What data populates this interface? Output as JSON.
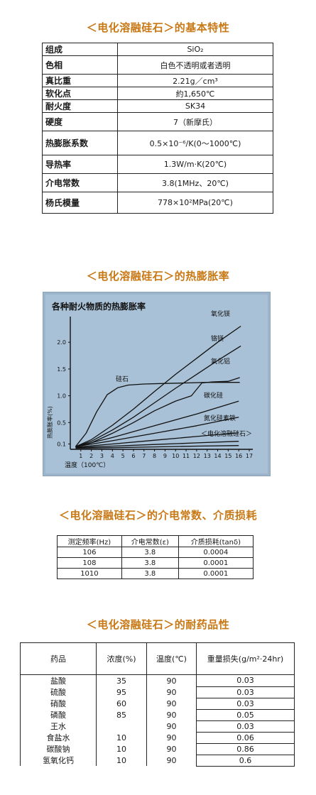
{
  "headings": {
    "basic": "＜电化溶融硅石＞的基本特性",
    "expansion": "＜电化溶融硅石＞的热膨胀率",
    "dielectric": "＜电化溶融硅石＞的介电常数、介质损耗",
    "chemical": "＜电化溶融硅石＞的耐药品性"
  },
  "properties": [
    {
      "label": "组成",
      "value": "SiO₂"
    },
    {
      "label": "色相",
      "value": "白色不透明或者透明"
    },
    {
      "label": "真比重",
      "value": "2.21g／cm³"
    },
    {
      "label": "软化点",
      "value": "約1,650℃"
    },
    {
      "label": "耐火度",
      "value": "SK34"
    },
    {
      "label": "硬度",
      "value": "7（新摩氏）"
    },
    {
      "label": "热膨胀系数",
      "value": "0.5×10⁻⁶/K(0～1000℃)"
    },
    {
      "label": "导热率",
      "value": "1.3W/m·K(20℃)"
    },
    {
      "label": "介电常数",
      "value": "3.8(1MHz、20℃)"
    },
    {
      "label": "杨氏模量",
      "value": "778×10²MPa(20℃)"
    }
  ],
  "chart_data": {
    "type": "line",
    "title": "各种耐火物质的热膨胀率",
    "xlabel": "温度（100℃）",
    "ylabel": "热膨胀率(%)",
    "x_ticks": [
      "1",
      "2",
      "3",
      "4",
      "5",
      "6",
      "7",
      "8",
      "9",
      "10",
      "11",
      "12",
      "13",
      "14",
      "15",
      "16",
      "17"
    ],
    "y_ticks": [
      "0.1",
      "0.5",
      "1.0",
      "1.5",
      "2.0"
    ],
    "xlim": [
      0,
      17
    ],
    "ylim": [
      0,
      2.4
    ],
    "series": [
      {
        "name": "氧化镁",
        "x": [
          0.5,
          2,
          4,
          6,
          8,
          10,
          12,
          14,
          16.2
        ],
        "y": [
          0.05,
          0.18,
          0.45,
          0.75,
          1.08,
          1.4,
          1.7,
          2.0,
          2.3
        ]
      },
      {
        "name": "铬镁",
        "x": [
          0.5,
          2,
          4,
          6,
          8,
          10,
          12,
          14,
          16.2
        ],
        "y": [
          0.05,
          0.15,
          0.36,
          0.6,
          0.87,
          1.14,
          1.4,
          1.66,
          1.93
        ]
      },
      {
        "name": "氧化铝",
        "x": [
          0.5,
          2,
          4,
          6,
          8,
          10,
          11.5,
          12.5,
          13.5,
          15,
          16.1
        ],
        "y": [
          0.05,
          0.12,
          0.3,
          0.5,
          0.72,
          0.9,
          1.0,
          1.24,
          1.26,
          1.27,
          1.34
        ]
      },
      {
        "name": "硅石",
        "x": [
          0.5,
          1.5,
          2.5,
          3.5,
          4.5,
          5.5,
          7,
          9,
          11,
          13,
          15,
          16.1
        ],
        "y": [
          0.05,
          0.3,
          0.7,
          1.02,
          1.15,
          1.2,
          1.22,
          1.23,
          1.24,
          1.25,
          1.25,
          1.25
        ]
      },
      {
        "name": "碳化硅",
        "x": [
          0.5,
          4,
          8,
          12,
          16
        ],
        "y": [
          0.05,
          0.22,
          0.44,
          0.66,
          0.9
        ]
      },
      {
        "name": "氮化硅素铁",
        "x": [
          0.5,
          4,
          8,
          12,
          16
        ],
        "y": [
          0.05,
          0.16,
          0.3,
          0.44,
          0.6
        ]
      },
      {
        "name": "＜电化溶融硅石＞",
        "x": [
          0.5,
          4,
          8,
          12,
          16
        ],
        "y": [
          0.04,
          0.1,
          0.17,
          0.24,
          0.31
        ]
      },
      {
        "name": "",
        "x": [
          0.5,
          4,
          8,
          12,
          16
        ],
        "y": [
          0.03,
          0.06,
          0.09,
          0.12,
          0.15
        ]
      },
      {
        "name": "",
        "x": [
          0.5,
          4,
          8,
          12,
          16
        ],
        "y": [
          0.02,
          0.03,
          0.045,
          0.06,
          0.07
        ]
      }
    ]
  },
  "dielectric": {
    "headers": [
      "测定频率(Hz)",
      "介电常数(ε)",
      "介质损耗(tanδ)"
    ],
    "rows": [
      [
        "106",
        "3.8",
        "0.0004"
      ],
      [
        "108",
        "3.8",
        "0.0001"
      ],
      [
        "1010",
        "3.8",
        "0.0001"
      ]
    ]
  },
  "chemical": {
    "headers": [
      "药品",
      "浓度(%)",
      "温度(℃)",
      "重量损失(g/m²·24hr)"
    ],
    "rows": [
      [
        "盐酸",
        "35",
        "90",
        "0.03"
      ],
      [
        "硫酸",
        "95",
        "90",
        "0.03"
      ],
      [
        "硝酸",
        "60",
        "90",
        "0.03"
      ],
      [
        "磷酸",
        "85",
        "90",
        "0.05"
      ],
      [
        "王水",
        "",
        "90",
        "0.03"
      ],
      [
        "食盐水",
        "10",
        "90",
        "0.06"
      ],
      [
        "碳酸钠",
        "10",
        "90",
        "0.86"
      ],
      [
        "氢氧化钙",
        "10",
        "90",
        "0.6"
      ]
    ]
  }
}
